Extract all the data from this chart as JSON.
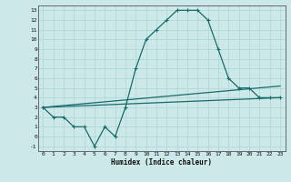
{
  "xlabel": "Humidex (Indice chaleur)",
  "bg_color": "#cce8e8",
  "grid_color": "#b0d8d8",
  "line_color": "#1a6b6b",
  "xlim": [
    -0.5,
    23.5
  ],
  "ylim": [
    -1.5,
    13.5
  ],
  "xticks": [
    0,
    1,
    2,
    3,
    4,
    5,
    6,
    7,
    8,
    9,
    10,
    11,
    12,
    13,
    14,
    15,
    16,
    17,
    18,
    19,
    20,
    21,
    22,
    23
  ],
  "yticks": [
    -1,
    0,
    1,
    2,
    3,
    4,
    5,
    6,
    7,
    8,
    9,
    10,
    11,
    12,
    13
  ],
  "main_line_x": [
    0,
    1,
    2,
    3,
    4,
    5,
    6,
    7,
    8,
    9,
    10,
    11,
    12,
    13,
    14,
    15,
    16,
    17,
    18,
    19,
    20,
    21,
    22,
    23
  ],
  "main_line_y": [
    3,
    2,
    2,
    1,
    1,
    -1,
    1,
    0,
    3,
    7,
    10,
    11,
    12,
    13,
    13,
    13,
    12,
    9,
    6,
    5,
    5,
    4,
    4,
    4
  ],
  "line2_x": [
    0,
    23
  ],
  "line2_y": [
    3.0,
    5.2
  ],
  "line3_x": [
    0,
    23
  ],
  "line3_y": [
    3.0,
    4.0
  ]
}
